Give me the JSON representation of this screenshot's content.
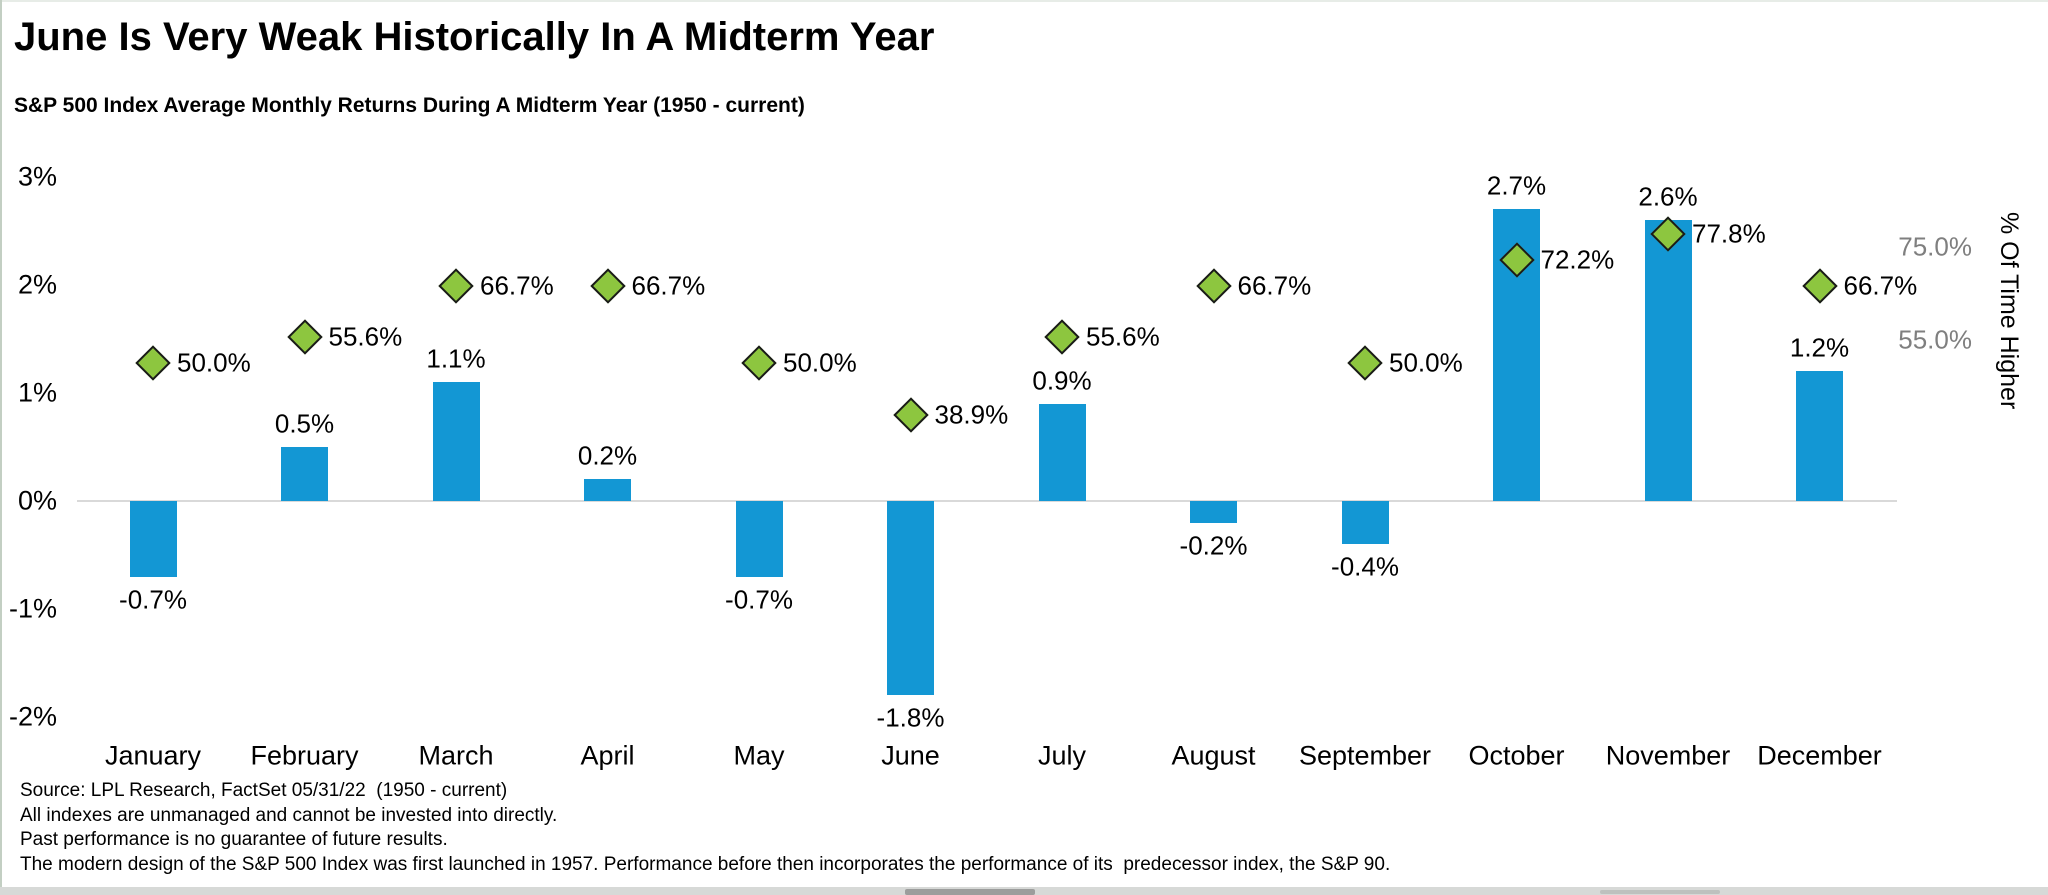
{
  "chart_data": {
    "type": "bar",
    "title": "June Is Very Weak Historically In A Midterm Year",
    "subtitle": "S&P 500 Index Average Monthly Returns During A Midterm Year (1950 - current)",
    "categories": [
      "January",
      "February",
      "March",
      "April",
      "May",
      "June",
      "July",
      "August",
      "September",
      "October",
      "November",
      "December"
    ],
    "series": [
      {
        "name": "Average Monthly Return",
        "type": "bar",
        "axis": "left",
        "unit": "%",
        "color": "#1397d4",
        "values": [
          -0.7,
          0.5,
          1.1,
          0.2,
          -0.7,
          -1.8,
          0.9,
          -0.2,
          -0.4,
          2.7,
          2.6,
          1.2
        ],
        "labels": [
          "-0.7%",
          "0.5%",
          "1.1%",
          "0.2%",
          "-0.7%",
          "-1.8%",
          "0.9%",
          "-0.2%",
          "-0.4%",
          "2.7%",
          "2.6%",
          "1.2%"
        ]
      },
      {
        "name": "% Of Time Higher",
        "type": "scatter",
        "marker": "diamond",
        "axis": "right",
        "unit": "%",
        "color": "#8dc63f",
        "values": [
          50.0,
          55.6,
          66.7,
          66.7,
          50.0,
          38.9,
          55.6,
          66.7,
          50.0,
          72.2,
          77.8,
          66.7
        ],
        "labels": [
          "50.0%",
          "55.6%",
          "66.7%",
          "66.7%",
          "50.0%",
          "38.9%",
          "55.6%",
          "66.7%",
          "50.0%",
          "72.2%",
          "77.8%",
          "66.7%"
        ]
      }
    ],
    "left_axis": {
      "tick_labels": [
        "3%",
        "2%",
        "1%",
        "0%",
        "-1%",
        "-2%"
      ],
      "tick_values": [
        3,
        2,
        1,
        0,
        -1,
        -2
      ],
      "range": [
        -2,
        3
      ],
      "gridline_at": 0
    },
    "right_axis": {
      "label": "% Of Time Higher",
      "tick_labels": [
        "75.0%",
        "55.0%"
      ],
      "tick_values": [
        75,
        55
      ],
      "tick_color": "#7f7f7f"
    },
    "legend": "none",
    "grid": "zero-line-only"
  },
  "footnotes": [
    "Source: LPL Research, FactSet 05/31/22  (1950 - current)",
    "All indexes are unmanaged and cannot be invested into directly.",
    "Past performance is no guarantee of future results.",
    "The modern design of the S&P 500 Index was first launched in 1957. Performance before then incorporates the performance of its  predecessor index, the S&P 90."
  ],
  "colors": {
    "bar": "#1397d4",
    "diamond": "#8dc63f",
    "diamond_border": "#1a1a1a",
    "gridline": "#d9d9d9",
    "right_tick_text": "#7f7f7f",
    "text": "#000000"
  }
}
